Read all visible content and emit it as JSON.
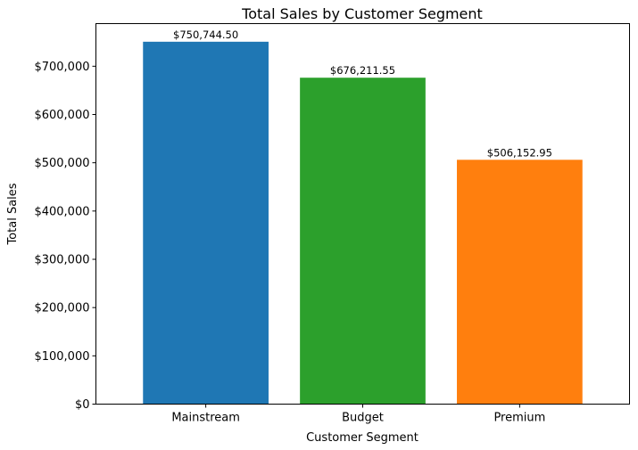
{
  "chart_data": {
    "type": "bar",
    "title": "Total Sales by Customer Segment",
    "xlabel": "Customer Segment",
    "ylabel": "Total Sales",
    "categories": [
      "Mainstream",
      "Budget",
      "Premium"
    ],
    "values": [
      750744.5,
      676211.55,
      506152.95
    ],
    "value_labels": [
      "$750,744.50",
      "$676,211.55",
      "$506,152.95"
    ],
    "colors": [
      "#1f77b4",
      "#2ca02c",
      "#ff7f0e"
    ],
    "ylim": [
      0,
      788281.73
    ],
    "yticks": [
      0,
      100000,
      200000,
      300000,
      400000,
      500000,
      600000,
      700000
    ],
    "ytick_labels": [
      "$0",
      "$100,000",
      "$200,000",
      "$300,000",
      "$400,000",
      "$500,000",
      "$600,000",
      "$700,000"
    ],
    "grid": false,
    "legend": "none"
  }
}
